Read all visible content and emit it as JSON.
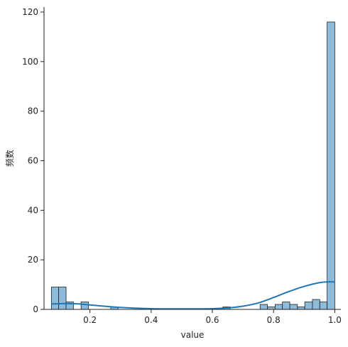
{
  "chart_data": {
    "type": "bar",
    "subtype": "histogram-with-kde",
    "xlabel": "value",
    "ylabel": "频数",
    "xlim": [
      0.05,
      1.02
    ],
    "ylim": [
      0,
      122
    ],
    "xticks": [
      0.2,
      0.4,
      0.6,
      0.8,
      1.0
    ],
    "xtick_labels": [
      "0.2",
      "0.4",
      "0.6",
      "0.8",
      "1.0"
    ],
    "yticks": [
      0,
      20,
      40,
      60,
      80,
      100,
      120
    ],
    "ytick_labels": [
      "0",
      "20",
      "40",
      "60",
      "80",
      "100",
      "120"
    ],
    "bins": [
      {
        "x0": 0.074,
        "x1": 0.098,
        "count": 9
      },
      {
        "x0": 0.098,
        "x1": 0.122,
        "count": 9
      },
      {
        "x0": 0.122,
        "x1": 0.146,
        "count": 3
      },
      {
        "x0": 0.171,
        "x1": 0.195,
        "count": 3
      },
      {
        "x0": 0.268,
        "x1": 0.292,
        "count": 1
      },
      {
        "x0": 0.634,
        "x1": 0.658,
        "count": 1
      },
      {
        "x0": 0.756,
        "x1": 0.78,
        "count": 2
      },
      {
        "x0": 0.78,
        "x1": 0.805,
        "count": 1
      },
      {
        "x0": 0.805,
        "x1": 0.829,
        "count": 2
      },
      {
        "x0": 0.829,
        "x1": 0.853,
        "count": 3
      },
      {
        "x0": 0.853,
        "x1": 0.878,
        "count": 2
      },
      {
        "x0": 0.878,
        "x1": 0.902,
        "count": 1
      },
      {
        "x0": 0.902,
        "x1": 0.927,
        "count": 3
      },
      {
        "x0": 0.927,
        "x1": 0.951,
        "count": 4
      },
      {
        "x0": 0.951,
        "x1": 0.975,
        "count": 3
      },
      {
        "x0": 0.975,
        "x1": 1.0,
        "count": 116
      }
    ],
    "kde": {
      "x": [
        0.074,
        0.1,
        0.15,
        0.2,
        0.3,
        0.4,
        0.5,
        0.6,
        0.65,
        0.7,
        0.75,
        0.8,
        0.85,
        0.9,
        0.95,
        0.975,
        1.0
      ],
      "y": [
        2.2,
        2.3,
        2.3,
        1.8,
        0.8,
        0.3,
        0.2,
        0.3,
        0.6,
        1.3,
        2.6,
        4.8,
        7.2,
        9.3,
        10.8,
        11.1,
        11.1
      ]
    },
    "grid": false,
    "legend": false,
    "colors": {
      "bar_fill": "#8dbbd9",
      "bar_edge": "#1f1f1f",
      "kde_line": "#1f77b4",
      "axis": "#222222"
    }
  }
}
